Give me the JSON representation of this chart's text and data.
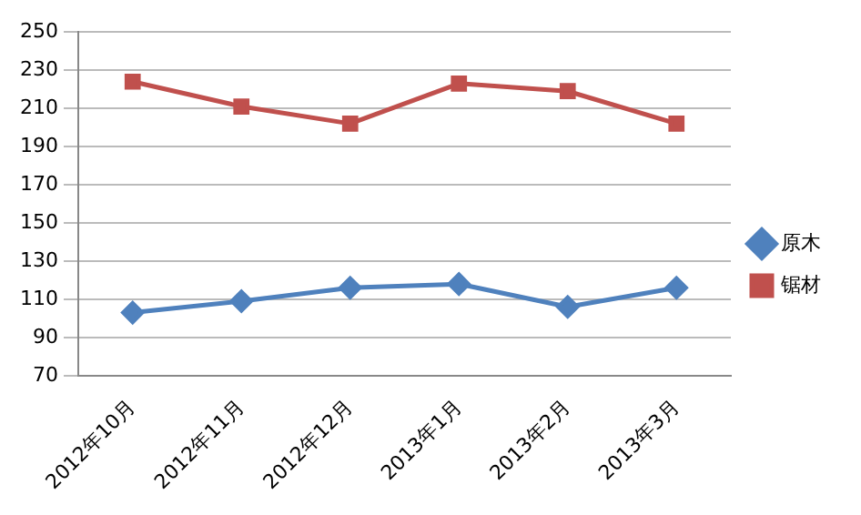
{
  "chart_data": {
    "type": "line",
    "categories": [
      "2012年10月",
      "2012年11月",
      "2012年12月",
      "2013年1月",
      "2013年2月",
      "2013年3月"
    ],
    "series": [
      {
        "name": "原木",
        "color": "#4f81bd",
        "values": [
          103,
          109,
          116,
          118,
          106,
          116
        ],
        "marker": "diamond"
      },
      {
        "name": "锯材",
        "color": "#c0504d",
        "values": [
          224,
          211,
          202,
          223,
          219,
          202
        ],
        "marker": "square"
      }
    ],
    "ylim": [
      70,
      250
    ],
    "yticks": [
      70,
      90,
      110,
      130,
      150,
      170,
      190,
      210,
      230,
      250
    ],
    "grid": "y",
    "legend": "right"
  }
}
